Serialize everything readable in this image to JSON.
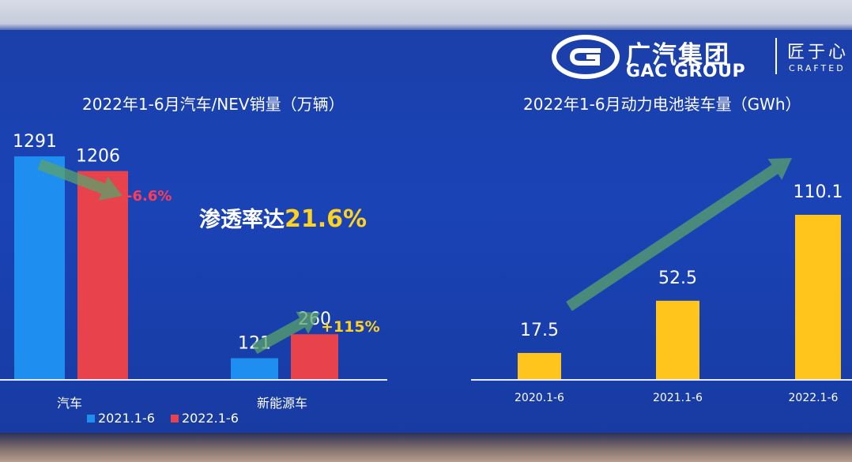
{
  "brand": {
    "name_cn": "广汽集团",
    "name_en": "GAC GROUP",
    "slogan": "匠于心",
    "slogan_en": "CRAFTED"
  },
  "callout": {
    "prefix": "渗透率达",
    "value": "21.6%",
    "color": "#ffd21f"
  },
  "chart_data": [
    {
      "type": "bar",
      "title": "2022年1-6月汽车/NEV销量（万辆）",
      "categories": [
        "汽车",
        "新能源车"
      ],
      "series": [
        {
          "name": "2021.1-6",
          "values": [
            1291,
            121
          ],
          "color": "#1e8ff0"
        },
        {
          "name": "2022.1-6",
          "values": [
            1206,
            260
          ],
          "color": "#e8424c"
        }
      ],
      "value_labels": [
        "1291",
        "121",
        "1206",
        "260"
      ],
      "annotations": [
        {
          "text": "-6.6%",
          "color": "#ff3b55"
        },
        {
          "text": "+115%",
          "color": "#ffd21f"
        }
      ],
      "legend": "bottom-left",
      "grid": false
    },
    {
      "type": "bar",
      "title": "2022年1-6月动力电池装车量（GWh）",
      "categories": [
        "2020.1-6",
        "2021.1-6",
        "2022.1-6"
      ],
      "values": [
        17.5,
        52.5,
        110.1
      ],
      "value_labels": [
        "17.5",
        "52.5",
        "110.1"
      ],
      "color": "#ffc51c",
      "grid": false
    }
  ]
}
